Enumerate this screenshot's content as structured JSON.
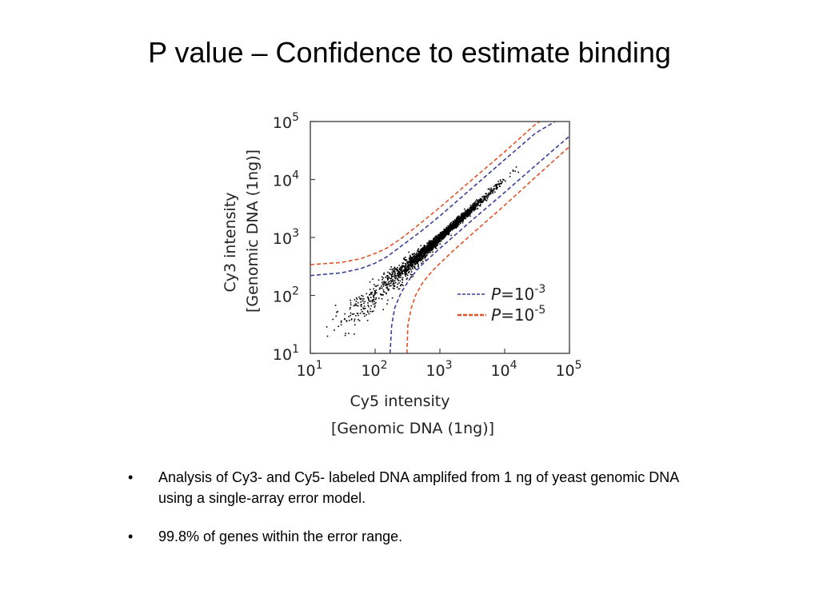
{
  "slide": {
    "title": "P value – Confidence to estimate binding",
    "bullet_symbol": "•",
    "bullets": [
      "Analysis of Cy3- and Cy5- labeled DNA amplifed from 1 ng of yeast genomic DNA using a single-array error model.",
      "99.8% of genes within the error range."
    ]
  },
  "chart_data": {
    "type": "scatter",
    "x_scale": "log",
    "y_scale": "log",
    "xlim": [
      10,
      100000
    ],
    "ylim": [
      10,
      100000
    ],
    "xlabel": "Cy5 intensity",
    "xlabel2": "[Genomic DNA (1ng)]",
    "ylabel": "Cy3 intensity",
    "ylabel2": "[Genomic DNA (1ng)]",
    "x_ticks": [
      {
        "base": "10",
        "exp": "1"
      },
      {
        "base": "10",
        "exp": "2"
      },
      {
        "base": "10",
        "exp": "3"
      },
      {
        "base": "10",
        "exp": "4"
      },
      {
        "base": "10",
        "exp": "5"
      }
    ],
    "y_ticks": [
      {
        "base": "10",
        "exp": "1"
      },
      {
        "base": "10",
        "exp": "2"
      },
      {
        "base": "10",
        "exp": "3"
      },
      {
        "base": "10",
        "exp": "4"
      },
      {
        "base": "10",
        "exp": "5"
      }
    ],
    "grid": false,
    "legend_position": "bottom-right",
    "series": [
      {
        "name": "P=10-3",
        "legend_prefix": "P",
        "legend_eq": "=10",
        "legend_exp": "-3",
        "kind": "dashed-line",
        "color": "#3a3f9a",
        "segments": [
          [
            [
              10,
              220
            ],
            [
              30,
              245
            ],
            [
              60,
              290
            ],
            [
              100,
              360
            ],
            [
              150,
              460
            ],
            [
              250,
              700
            ],
            [
              500,
              1250
            ],
            [
              1000,
              2350
            ],
            [
              3000,
              6800
            ],
            [
              10000,
              22000
            ],
            [
              30000,
              63000
            ],
            [
              60000,
              100000
            ]
          ],
          [
            [
              170,
              10
            ],
            [
              180,
              30
            ],
            [
              200,
              60
            ],
            [
              250,
              110
            ],
            [
              350,
              200
            ],
            [
              500,
              320
            ],
            [
              1000,
              650
            ],
            [
              3000,
              1900
            ],
            [
              10000,
              6000
            ],
            [
              30000,
              17500
            ],
            [
              100000,
              56000
            ]
          ]
        ]
      },
      {
        "name": "P=10-5",
        "legend_prefix": "P",
        "legend_eq": "=10",
        "legend_exp": "-5",
        "kind": "dashed-line",
        "color": "#e0542a",
        "segments": [
          [
            [
              10,
              340
            ],
            [
              30,
              370
            ],
            [
              60,
              430
            ],
            [
              100,
              530
            ],
            [
              150,
              650
            ],
            [
              250,
              950
            ],
            [
              500,
              1750
            ],
            [
              1000,
              3300
            ],
            [
              3000,
              9500
            ],
            [
              10000,
              30000
            ],
            [
              30000,
              90000
            ],
            [
              35000,
              100000
            ]
          ],
          [
            [
              310,
              10
            ],
            [
              320,
              30
            ],
            [
              360,
              60
            ],
            [
              420,
              100
            ],
            [
              550,
              170
            ],
            [
              800,
              280
            ],
            [
              1500,
              550
            ],
            [
              3000,
              1100
            ],
            [
              10000,
              3600
            ],
            [
              30000,
              11000
            ],
            [
              100000,
              37000
            ]
          ]
        ]
      },
      {
        "name": "genes",
        "kind": "points",
        "color": "#000000",
        "point_count": 2200,
        "seed": 7
      }
    ]
  }
}
